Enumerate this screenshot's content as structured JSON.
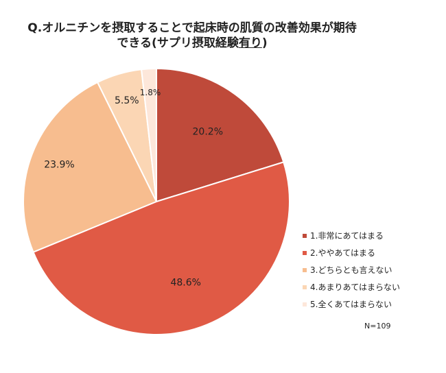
{
  "chart_data": {
    "type": "pie",
    "title_line1": "Q.オルニチンを摂取することで起床時の肌質の改善効果が期待",
    "title_line2_prefix": "できる(サプリ摂取経験",
    "title_line2_emphasis": "有り",
    "title_line2_suffix": ")",
    "categories": [
      "1.非常にあてはまる",
      "2.ややあてはまる",
      "3.どちらとも言えない",
      "4.あまりあてはまらない",
      "5.全くあてはまらない"
    ],
    "values": [
      20.2,
      48.6,
      23.9,
      5.5,
      1.8
    ],
    "value_labels": [
      "20.2%",
      "48.6%",
      "23.9%",
      "5.5%",
      "1.8%"
    ],
    "colors": [
      "#bf4a3a",
      "#e05a45",
      "#f7bd8f",
      "#fbd6b4",
      "#fde7da"
    ],
    "legend_position": "right",
    "note": "N=109"
  }
}
